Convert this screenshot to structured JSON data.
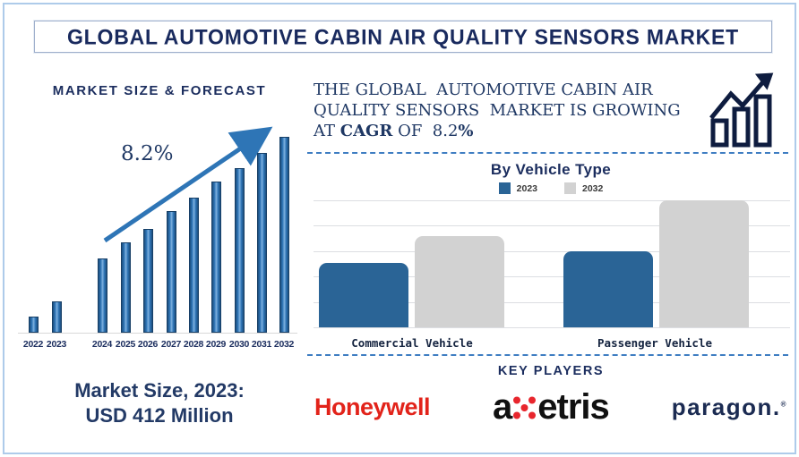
{
  "title": "GLOBAL AUTOMOTIVE CABIN AIR QUALITY SENSORS MARKET",
  "colors": {
    "navy_text": "#1F3864",
    "heading_navy": "#1B2D5E",
    "forecast_bar_blue": "#2E75B6",
    "forecast_bar_edge": "#1C4E7E",
    "vehicle_blue": "#2A6496",
    "vehicle_gray": "#D2D2D2",
    "dashed_separator": "#3E7DC2",
    "frame_border": "#AECBEA",
    "honeywell_red": "#E2231A",
    "axetris_dot_red": "#E8262D",
    "paragon_navy": "#1B2B52"
  },
  "forecast": {
    "heading": "MARKET SIZE & FORECAST",
    "growth_label": "8.2%",
    "market_size_line1": "Market Size, 2023:",
    "market_size_line2": "USD 412 Million"
  },
  "statement": {
    "line1": "THE GLOBAL  AUTOMOTIVE CABIN AIR",
    "line2": "QUALITY SENSORS  MARKET IS GROWING",
    "line3_pre": "AT ",
    "line3_cagr": "CAGR",
    "line3_mid": " OF  8.2",
    "line3_pct": "%"
  },
  "vehicle_section": {
    "heading": "By Vehicle Type"
  },
  "key_players": {
    "heading": "KEY PLAYERS",
    "players": [
      {
        "name": "Honeywell"
      },
      {
        "part1": "a",
        "part2": "etris"
      },
      {
        "name": "paragon.",
        "mark": "®"
      }
    ]
  },
  "chart_data": [
    {
      "id": "market-size-forecast",
      "type": "bar",
      "title": "MARKET SIZE & FORECAST",
      "categories": [
        "2022",
        "2023",
        "2024",
        "2025",
        "2026",
        "2027",
        "2028",
        "2029",
        "2030",
        "2031",
        "2032"
      ],
      "values_pct": [
        8,
        16,
        38,
        46,
        53,
        62,
        69,
        77,
        84,
        92,
        100
      ],
      "annotation": "8.2%",
      "known_value": {
        "year": "2023",
        "value": "USD 412 Million"
      },
      "xlabel": "",
      "ylabel": "",
      "notes": "bars unlabeled; values estimated as percent of the 2032 bar height; x-axis has a gap between 2023 and 2024"
    },
    {
      "id": "by-vehicle-type",
      "type": "bar",
      "title": "By Vehicle Type",
      "categories": [
        "Commercial Vehicle",
        "Passenger Vehicle"
      ],
      "series": [
        {
          "name": "2023",
          "values_pct": [
            51,
            60
          ],
          "color": "#2A6496"
        },
        {
          "name": "2032",
          "values_pct": [
            72,
            100
          ],
          "color": "#D2D2D2"
        }
      ],
      "legend_position": "top",
      "grid": true,
      "notes": "bars unlabeled; values estimated as percent of tallest bar (Passenger Vehicle 2032)"
    }
  ]
}
